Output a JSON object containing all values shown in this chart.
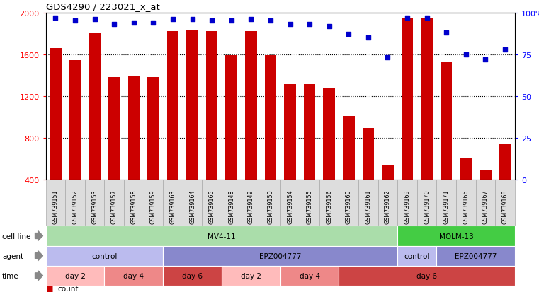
{
  "title": "GDS4290 / 223021_x_at",
  "samples": [
    "GSM739151",
    "GSM739152",
    "GSM739153",
    "GSM739157",
    "GSM739158",
    "GSM739159",
    "GSM739163",
    "GSM739164",
    "GSM739165",
    "GSM739148",
    "GSM739149",
    "GSM739150",
    "GSM739154",
    "GSM739155",
    "GSM739156",
    "GSM739160",
    "GSM739161",
    "GSM739162",
    "GSM739169",
    "GSM739170",
    "GSM739171",
    "GSM739166",
    "GSM739167",
    "GSM739168"
  ],
  "counts": [
    1660,
    1540,
    1800,
    1380,
    1390,
    1380,
    1820,
    1830,
    1820,
    1590,
    1820,
    1590,
    1310,
    1310,
    1280,
    1010,
    890,
    540,
    1950,
    1940,
    1530,
    600,
    490,
    740
  ],
  "percentiles": [
    97,
    95,
    96,
    93,
    94,
    94,
    96,
    96,
    95,
    95,
    96,
    95,
    93,
    93,
    92,
    87,
    85,
    73,
    97,
    97,
    88,
    75,
    72,
    78
  ],
  "bar_color": "#cc0000",
  "dot_color": "#0000cc",
  "cell_line_spans": [
    [
      0,
      17,
      "MV4-11",
      "#aaddaa"
    ],
    [
      18,
      23,
      "MOLM-13",
      "#44cc44"
    ]
  ],
  "agent_spans": [
    [
      0,
      5,
      "control",
      "#bbbbee"
    ],
    [
      6,
      17,
      "EPZ004777",
      "#8888cc"
    ],
    [
      18,
      19,
      "control",
      "#bbbbee"
    ],
    [
      20,
      23,
      "EPZ004777",
      "#8888cc"
    ]
  ],
  "time_spans": [
    [
      0,
      2,
      "day 2",
      "#ffbbbb"
    ],
    [
      3,
      5,
      "day 4",
      "#ee8888"
    ],
    [
      6,
      8,
      "day 6",
      "#cc4444"
    ],
    [
      9,
      11,
      "day 2",
      "#ffbbbb"
    ],
    [
      12,
      14,
      "day 4",
      "#ee8888"
    ],
    [
      15,
      23,
      "day 6",
      "#cc4444"
    ]
  ]
}
